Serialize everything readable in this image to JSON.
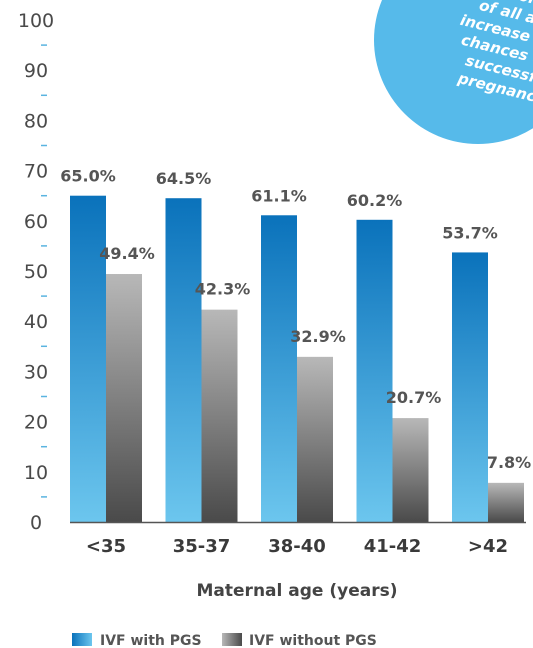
{
  "chart_data": {
    "type": "bar",
    "categories": [
      "<35",
      "35-37",
      "38-40",
      "41-42",
      ">42"
    ],
    "series": [
      {
        "name": "IVF with PGS",
        "values": [
          65.0,
          64.5,
          61.1,
          60.2,
          53.7
        ],
        "labels": [
          "65.0%",
          "64.5%",
          "61.1%",
          "60.2%",
          "53.7%"
        ],
        "colors": [
          "#0a72bb",
          "#6cc6ee"
        ]
      },
      {
        "name": "IVF without PGS",
        "values": [
          49.4,
          42.3,
          32.9,
          20.7,
          7.8
        ],
        "labels": [
          "49.4%",
          "42.3%",
          "32.9%",
          "20.7%",
          "7.8%"
        ],
        "colors": [
          "#b8b8b8",
          "#4a4a4a"
        ]
      }
    ],
    "xlabel": "Maternal age (years)",
    "ylabel": "",
    "ylim": [
      0,
      100
    ],
    "yticks": [
      "0",
      "10",
      "20",
      "30",
      "40",
      "50",
      "60",
      "70",
      "80",
      "90",
      "100"
    ],
    "grid": false,
    "legend": "bottom",
    "minor_tick_color": "#5ab4e0",
    "axis_color": "#555555"
  },
  "callout": {
    "lines": [
      "...women",
      "of all ages",
      "increase their",
      "chances of a",
      "successful",
      "pregnancy."
    ],
    "color": "#56baea"
  }
}
